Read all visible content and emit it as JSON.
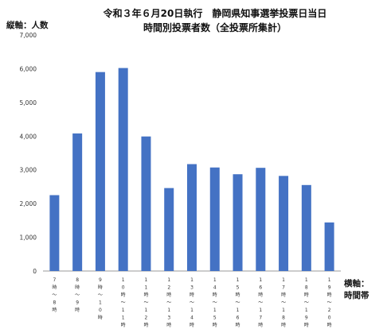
{
  "chart_data": {
    "type": "bar",
    "title": "令和３年６月20日執行　静岡県知事選挙投票日当日",
    "subtitle": "時間別投票者数（全投票所集計）",
    "ylabel": "縦軸：人数",
    "xlabel": "横軸：\n時間帯",
    "ylim": [
      0,
      7000
    ],
    "yticks": [
      "0",
      "1,000",
      "2,000",
      "3,000",
      "4,000",
      "5,000",
      "6,000",
      "7,000"
    ],
    "grid": false,
    "categories": [
      "7時〜8時",
      "8時〜9時",
      "9時〜10時",
      "10時〜11時",
      "11時〜12時",
      "12時〜13時",
      "13時〜14時",
      "14時〜15時",
      "15時〜16時",
      "16時〜17時",
      "17時〜18時",
      "18時〜19時",
      "19時〜20時"
    ],
    "category_chars": [
      [
        "7",
        "時",
        "〜",
        "8",
        "時"
      ],
      [
        "8",
        "時",
        "〜",
        "9",
        "時"
      ],
      [
        "9",
        "時",
        "〜",
        "1",
        "0",
        "時"
      ],
      [
        "1",
        "0",
        "時",
        "〜",
        "1",
        "1",
        "時"
      ],
      [
        "1",
        "1",
        "時",
        "〜",
        "1",
        "2",
        "時"
      ],
      [
        "1",
        "2",
        "時",
        "〜",
        "1",
        "3",
        "時"
      ],
      [
        "1",
        "3",
        "時",
        "〜",
        "1",
        "4",
        "時"
      ],
      [
        "1",
        "4",
        "時",
        "〜",
        "1",
        "5",
        "時"
      ],
      [
        "1",
        "5",
        "時",
        "〜",
        "1",
        "6",
        "時"
      ],
      [
        "1",
        "6",
        "時",
        "〜",
        "1",
        "7",
        "時"
      ],
      [
        "1",
        "7",
        "時",
        "〜",
        "1",
        "8",
        "時"
      ],
      [
        "1",
        "8",
        "時",
        "〜",
        "1",
        "9",
        "時"
      ],
      [
        "1",
        "9",
        "時",
        "〜",
        "2",
        "0",
        "時"
      ]
    ],
    "values": [
      2250,
      4080,
      5900,
      6020,
      3990,
      2460,
      3170,
      3070,
      2870,
      3060,
      2820,
      2550,
      1440
    ],
    "bar_color": "#4472c4"
  }
}
